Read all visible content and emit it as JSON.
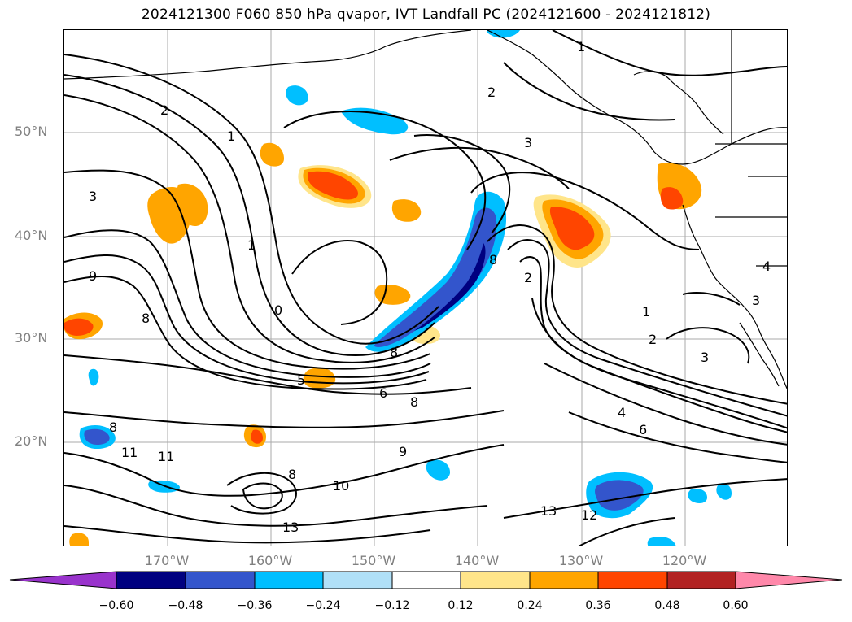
{
  "title": "2024121300 F060 850 hPa qvapor, IVT Landfall PC (2024121600 - 2024121812)",
  "map": {
    "latitude_labels": [
      "50°N",
      "40°N",
      "30°N",
      "20°N"
    ],
    "longitude_labels": [
      "170°W",
      "160°W",
      "150°W",
      "140°W",
      "130°W",
      "120°W"
    ],
    "contour_labels": [
      "1",
      "2",
      "3",
      "1",
      "3",
      "2",
      "1",
      "9",
      "8",
      "0",
      "8",
      "5",
      "6",
      "8",
      "9",
      "8",
      "11",
      "11",
      "8",
      "10",
      "13",
      "13",
      "12",
      "4",
      "6",
      "2",
      "3",
      "1",
      "3",
      "4",
      "8",
      "2"
    ]
  },
  "colorbar": {
    "tick_labels": [
      "−0.60",
      "−0.48",
      "−0.36",
      "−0.24",
      "−0.12",
      "0.12",
      "0.24",
      "0.36",
      "0.48",
      "0.60"
    ],
    "colors": [
      "#9933cc",
      "#000080",
      "#3355cc",
      "#00bfff",
      "#b0e0f8",
      "#ffffff",
      "#ffe58a",
      "#ffa500",
      "#ff4500",
      "#b22222",
      "#ff88aa"
    ]
  }
}
